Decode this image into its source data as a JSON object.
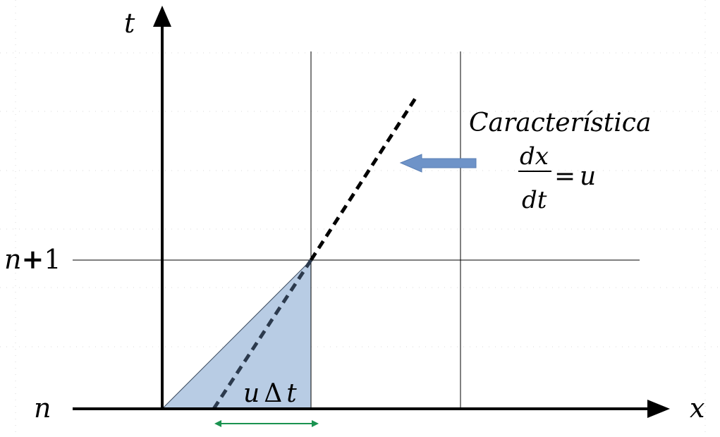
{
  "axes": {
    "x_label": "x",
    "t_label": "t"
  },
  "levels": {
    "n_label": "n",
    "n1_label_var": "n",
    "n1_label_op": "+",
    "n1_label_num": "1"
  },
  "annotation": {
    "title": "Característica",
    "numerator": "dx",
    "denominator": "dt",
    "equals": "=",
    "rhs": "u"
  },
  "span_label": {
    "u": "u",
    "delta": "Δ",
    "t": "t"
  },
  "colors": {
    "shaded_triangle": "#b8cce4",
    "arrow_fill": "#6e93c8",
    "span_arrow": "#1a9350",
    "characteristic_line": "#000000",
    "characteristic_line_inside": "#2c3a4d"
  }
}
